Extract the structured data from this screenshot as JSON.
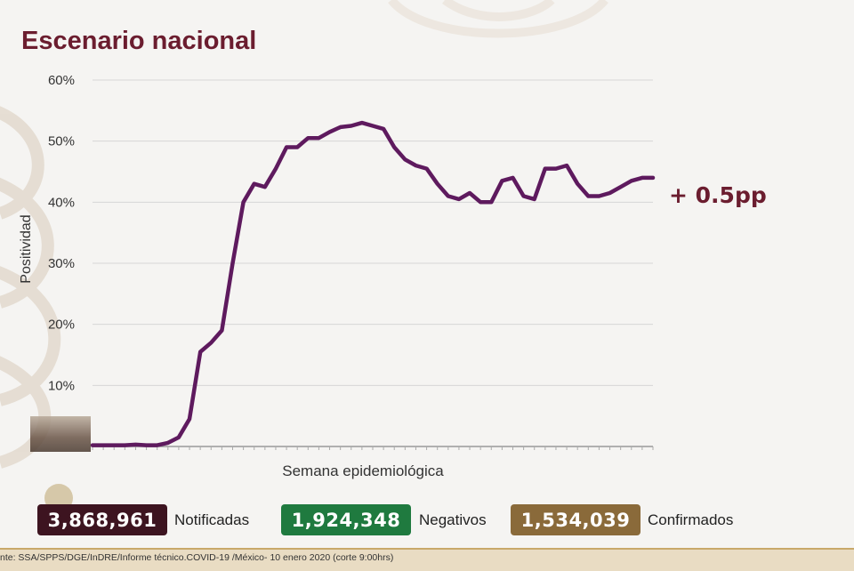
{
  "header": {
    "title": "Escenario nacional"
  },
  "chart_data": {
    "type": "line",
    "title": "Escenario nacional",
    "xlabel": "Semana epidemiológica",
    "ylabel": "Positividad",
    "x": [
      1,
      2,
      3,
      4,
      5,
      6,
      7,
      8,
      9,
      10,
      11,
      12,
      13,
      14,
      15,
      16,
      17,
      18,
      19,
      20,
      21,
      22,
      23,
      24,
      25,
      26,
      27,
      28,
      29,
      30,
      31,
      32,
      33,
      34,
      35,
      36,
      37,
      38,
      39,
      40,
      41,
      42,
      43,
      44,
      45,
      46,
      47,
      48,
      49,
      50,
      51,
      52,
      53
    ],
    "series": [
      {
        "values": [
          0.2,
          0.2,
          0.2,
          0.2,
          0.3,
          0.2,
          0.2,
          0.6,
          1.5,
          4.5,
          15.5,
          17,
          19,
          30,
          40,
          43,
          42.5,
          45.5,
          49,
          49,
          50.5,
          50.5,
          51.5,
          52.3,
          52.5,
          53,
          52.5,
          52,
          49,
          47,
          46,
          45.5,
          43,
          41,
          40.5,
          41.5,
          40,
          40,
          43.5,
          44,
          41,
          40.5,
          45.5,
          45.5,
          46,
          43,
          41,
          41,
          41.5,
          42.5,
          43.5,
          44,
          44
        ]
      }
    ],
    "yticks": [
      "60%",
      "50%",
      "40%",
      "30%",
      "20%",
      "10%"
    ],
    "ylim": [
      0,
      60
    ],
    "annotation": "+ 0.5pp",
    "grid": true,
    "color": "#5e1a5e"
  },
  "stats": [
    {
      "value": "3,868,961",
      "label": "Notificadas",
      "color": "#3d1420"
    },
    {
      "value": "1,924,348",
      "label": "Negativos",
      "color": "#1f7a3f"
    },
    {
      "value": "1,534,039",
      "label": "Confirmados",
      "color": "#8a6a3a"
    }
  ],
  "footer": {
    "source": "nte: SSA/SPPS/DGE/InDRE/Informe técnico.COVID-19 /México- 10 enero 2020 (corte 9:00hrs)"
  }
}
